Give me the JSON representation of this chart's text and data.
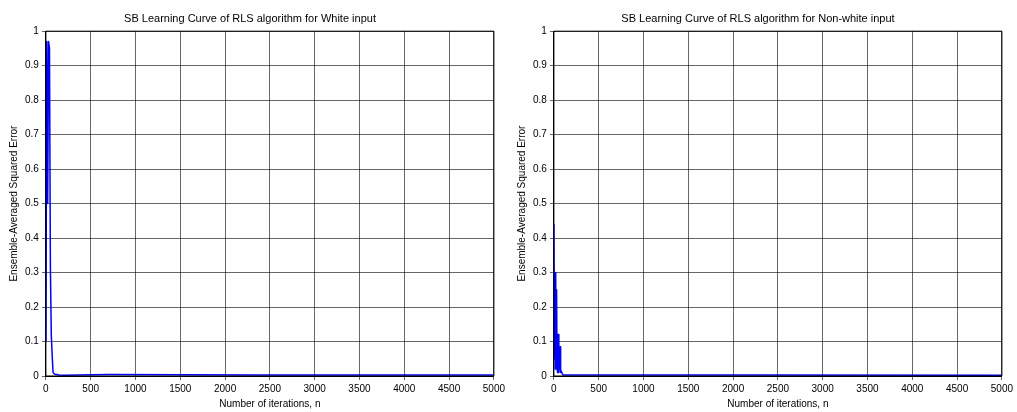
{
  "chart_data": [
    {
      "type": "line",
      "title": "SB Learning Curve of RLS algorithm for White input",
      "xlabel": "Number of iterations, n",
      "ylabel": "Ensemble-Averaged Squared Error",
      "x": [
        0,
        10,
        20,
        30,
        40,
        50,
        60,
        70,
        80,
        100,
        150,
        200,
        700,
        2500,
        3000,
        4990
      ],
      "series": [
        {
          "color": "#0000ff",
          "values": [
            0.1,
            0.97,
            0.5,
            0.97,
            0.95,
            0.32,
            0.12,
            0.06,
            0.01,
            0.005,
            0.003,
            0.002,
            0.004,
            0.003,
            0.003,
            0.003
          ]
        }
      ],
      "xlim": [
        0,
        5000
      ],
      "xticks": [
        0,
        500,
        1000,
        1500,
        2000,
        2500,
        3000,
        3500,
        4000,
        4500,
        5000
      ],
      "ylim": [
        0,
        1
      ],
      "yticks": [
        0,
        0.1,
        0.2,
        0.3,
        0.4,
        0.5,
        0.6,
        0.7,
        0.8,
        0.9,
        1
      ],
      "grid": true,
      "line_style": "solid",
      "marker": "none"
    },
    {
      "type": "line",
      "title": "SB Learning Curve of RLS algorithm for Non-white input",
      "xlabel": "Number of iterations, n",
      "ylabel": "Ensemble-Averaged Squared Error",
      "x": [
        0,
        5,
        10,
        15,
        20,
        25,
        30,
        35,
        40,
        45,
        50,
        55,
        60,
        65,
        70,
        75,
        80,
        100,
        5000
      ],
      "series": [
        {
          "color": "#0000ff",
          "values": [
            0.44,
            0.05,
            0.3,
            0.02,
            0.3,
            0.03,
            0.25,
            0.02,
            0.12,
            0.01,
            0.12,
            0.01,
            0.05,
            0.02,
            0.085,
            0.01,
            0.015,
            0.003,
            0.002
          ]
        }
      ],
      "xlim": [
        0,
        5000
      ],
      "xticks": [
        0,
        500,
        1000,
        1500,
        2000,
        2500,
        3000,
        3500,
        4000,
        4500,
        5000
      ],
      "ylim": [
        0,
        1
      ],
      "yticks": [
        0,
        0.1,
        0.2,
        0.3,
        0.4,
        0.5,
        0.6,
        0.7,
        0.8,
        0.9,
        1
      ],
      "grid": true,
      "line_style": "solid",
      "marker": "none"
    }
  ]
}
